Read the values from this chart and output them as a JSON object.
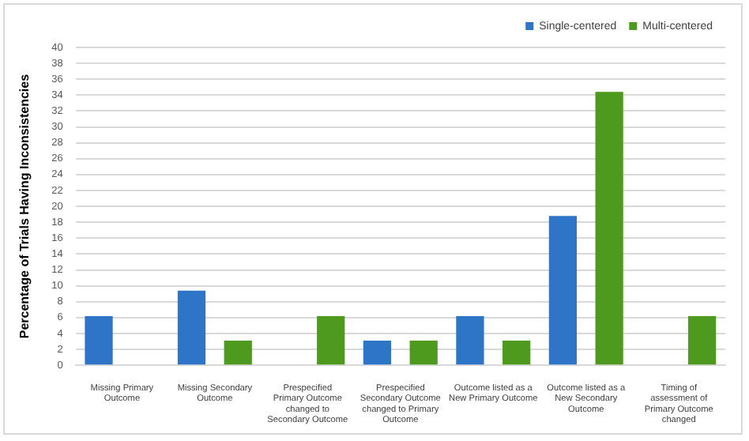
{
  "chart_data": {
    "type": "bar",
    "ylabel": "Percentage of Trials Having Inconsistencies",
    "categories": [
      "Missing Primary Outcome",
      "Missing Secondary Outcome",
      "Prespecified Primary Outcome changed to Secondary Outcome",
      "Prespecified Secondary Outcome changed to Primary Outcome",
      "Outcome listed as a New Primary Outcome",
      "Outcome listed as a New Secondary Outcome",
      "Timing of assessment of Primary Outcome changed"
    ],
    "series": [
      {
        "name": "Single-centered",
        "color": "#2e75c8",
        "values": [
          6.2,
          9.4,
          0,
          3.1,
          6.2,
          18.8,
          0
        ]
      },
      {
        "name": "Multi-centered",
        "color": "#4e9a1e",
        "values": [
          0,
          3.1,
          6.2,
          3.1,
          3.1,
          34.4,
          6.2
        ]
      }
    ],
    "ylim": [
      0,
      40
    ],
    "yticks": [
      0,
      2,
      4,
      6,
      8,
      10,
      12,
      14,
      16,
      18,
      20,
      22,
      24,
      26,
      28,
      30,
      32,
      34,
      36,
      38,
      40
    ],
    "grid": "y",
    "legend": "top"
  }
}
